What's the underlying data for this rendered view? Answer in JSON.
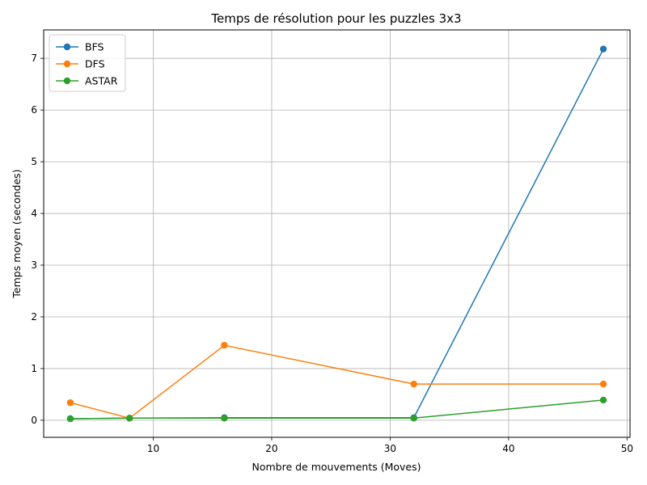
{
  "chart_data": {
    "type": "line",
    "title": "Temps de résolution pour les puzzles 3x3",
    "xlabel": "Nombre de mouvements (Moves)",
    "ylabel": "Temps moyen (secondes)",
    "xlim": [
      0.75,
      50.25
    ],
    "ylim": [
      -0.33,
      7.55
    ],
    "xticks": [
      10,
      20,
      30,
      40,
      50
    ],
    "yticks": [
      0,
      1,
      2,
      3,
      4,
      5,
      6,
      7
    ],
    "grid": true,
    "legend_position": "top-left",
    "x": [
      3,
      8,
      16,
      32,
      48
    ],
    "series": [
      {
        "name": "BFS",
        "color": "#1f77b4",
        "values": [
          0.03,
          0.04,
          0.05,
          0.05,
          7.18
        ]
      },
      {
        "name": "DFS",
        "color": "#ff7f0e",
        "values": [
          0.34,
          0.04,
          1.45,
          0.7,
          0.7
        ]
      },
      {
        "name": "ASTAR",
        "color": "#2ca02c",
        "values": [
          0.03,
          0.04,
          0.04,
          0.04,
          0.39
        ]
      }
    ]
  }
}
